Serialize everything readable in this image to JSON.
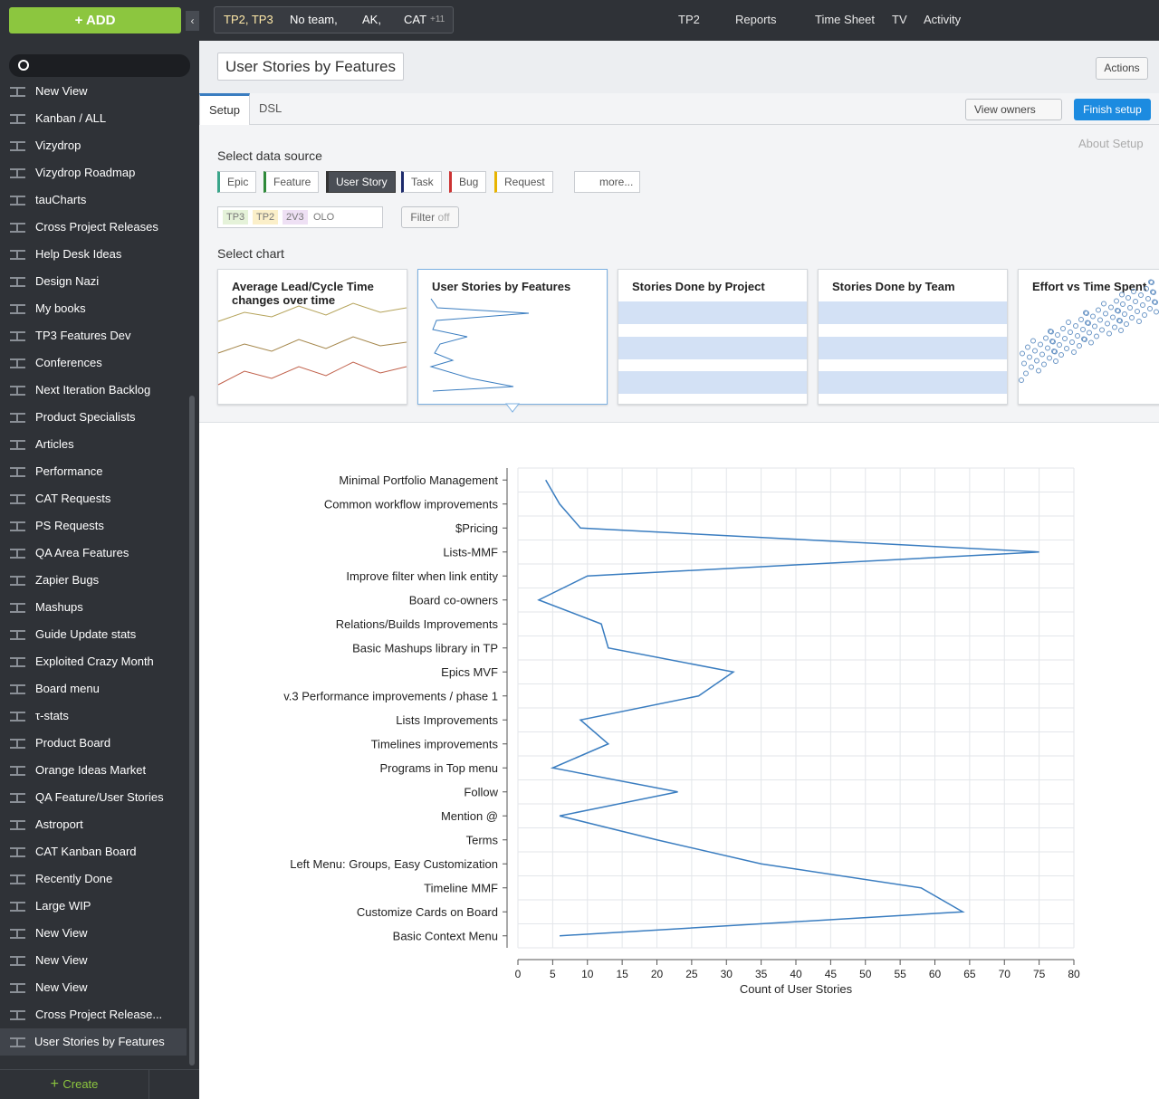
{
  "sidebar": {
    "add": "ADD",
    "views": [
      "New View",
      "Kanban / ALL",
      "Vizydrop",
      "Vizydrop Roadmap",
      "tauCharts",
      "Cross Project Releases",
      "Help Desk Ideas",
      "Design Nazi",
      "My books",
      "TP3 Features Dev",
      "Conferences",
      "Next Iteration Backlog",
      "Product Specialists",
      "Articles",
      "Performance",
      "CAT Requests",
      "PS Requests",
      "QA Area Features",
      "Zapier Bugs",
      "Mashups",
      "Guide Update stats",
      "Exploited Crazy Month",
      "Board menu",
      "τ-stats",
      "Product Board",
      "Orange Ideas Market",
      "QA Feature/User Stories",
      "Astroport",
      "CAT Kanban Board",
      "Recently Done",
      "Large WIP",
      "New View",
      "New View",
      "New View",
      "Cross Project Release...",
      "User Stories by Features"
    ],
    "create": "Create"
  },
  "topbar": {
    "context": [
      "TP2, TP3",
      "No team,",
      "AK,",
      "CAT",
      "+11"
    ],
    "nav": [
      "TP2",
      "Reports",
      "Time Sheet",
      "TV",
      "Activity"
    ]
  },
  "header": {
    "title": "User Stories by Features",
    "actions": "Actions"
  },
  "tabs": [
    "Setup",
    "DSL"
  ],
  "view_owners": "View owners",
  "finish_setup": "Finish setup",
  "setup": {
    "data_source_label": "Select data source",
    "about": "About Setup",
    "sources": [
      "Epic",
      "Feature",
      "User Story",
      "Task",
      "Bug",
      "Request"
    ],
    "more": "more...",
    "filter_tags": [
      "TP3",
      "TP2",
      "2V3",
      "OLO"
    ],
    "filter": "Filter",
    "filter_state": "off",
    "chart_label": "Select chart",
    "chart_cards": [
      "Average Lead/Cycle Time changes over time",
      "User Stories by Features",
      "Stories Done by Project",
      "Stories Done by Team",
      "Effort vs Time Spent"
    ]
  },
  "chart_data": {
    "type": "line",
    "orientation": "horizontal",
    "categories": [
      "Minimal Portfolio Management",
      "Common workflow improvements",
      "$Pricing",
      "Lists-MMF",
      "Improve filter when link entity",
      "Board co-owners",
      "Relations/Builds Improvements",
      "Basic Mashups library in TP",
      "Epics MVF",
      "v.3 Performance improvements / phase 1",
      "Lists Improvements",
      "Timelines improvements",
      "Programs in Top menu",
      "Follow",
      "Mention @",
      "Terms",
      "Left Menu: Groups, Easy Customization",
      "Timeline MMF",
      "Customize Cards on Board",
      "Basic Context Menu"
    ],
    "values": [
      4,
      6,
      9,
      75,
      10,
      3,
      12,
      13,
      31,
      26,
      9,
      13,
      5,
      23,
      6,
      20,
      35,
      58,
      64,
      6
    ],
    "color": "#3a7dc0",
    "xlabel": "Count of User Stories",
    "xlim": [
      0,
      80
    ],
    "xticks": [
      0,
      5,
      10,
      15,
      20,
      25,
      30,
      35,
      40,
      45,
      50,
      55,
      60,
      65,
      70,
      75,
      80
    ],
    "grid": true
  }
}
